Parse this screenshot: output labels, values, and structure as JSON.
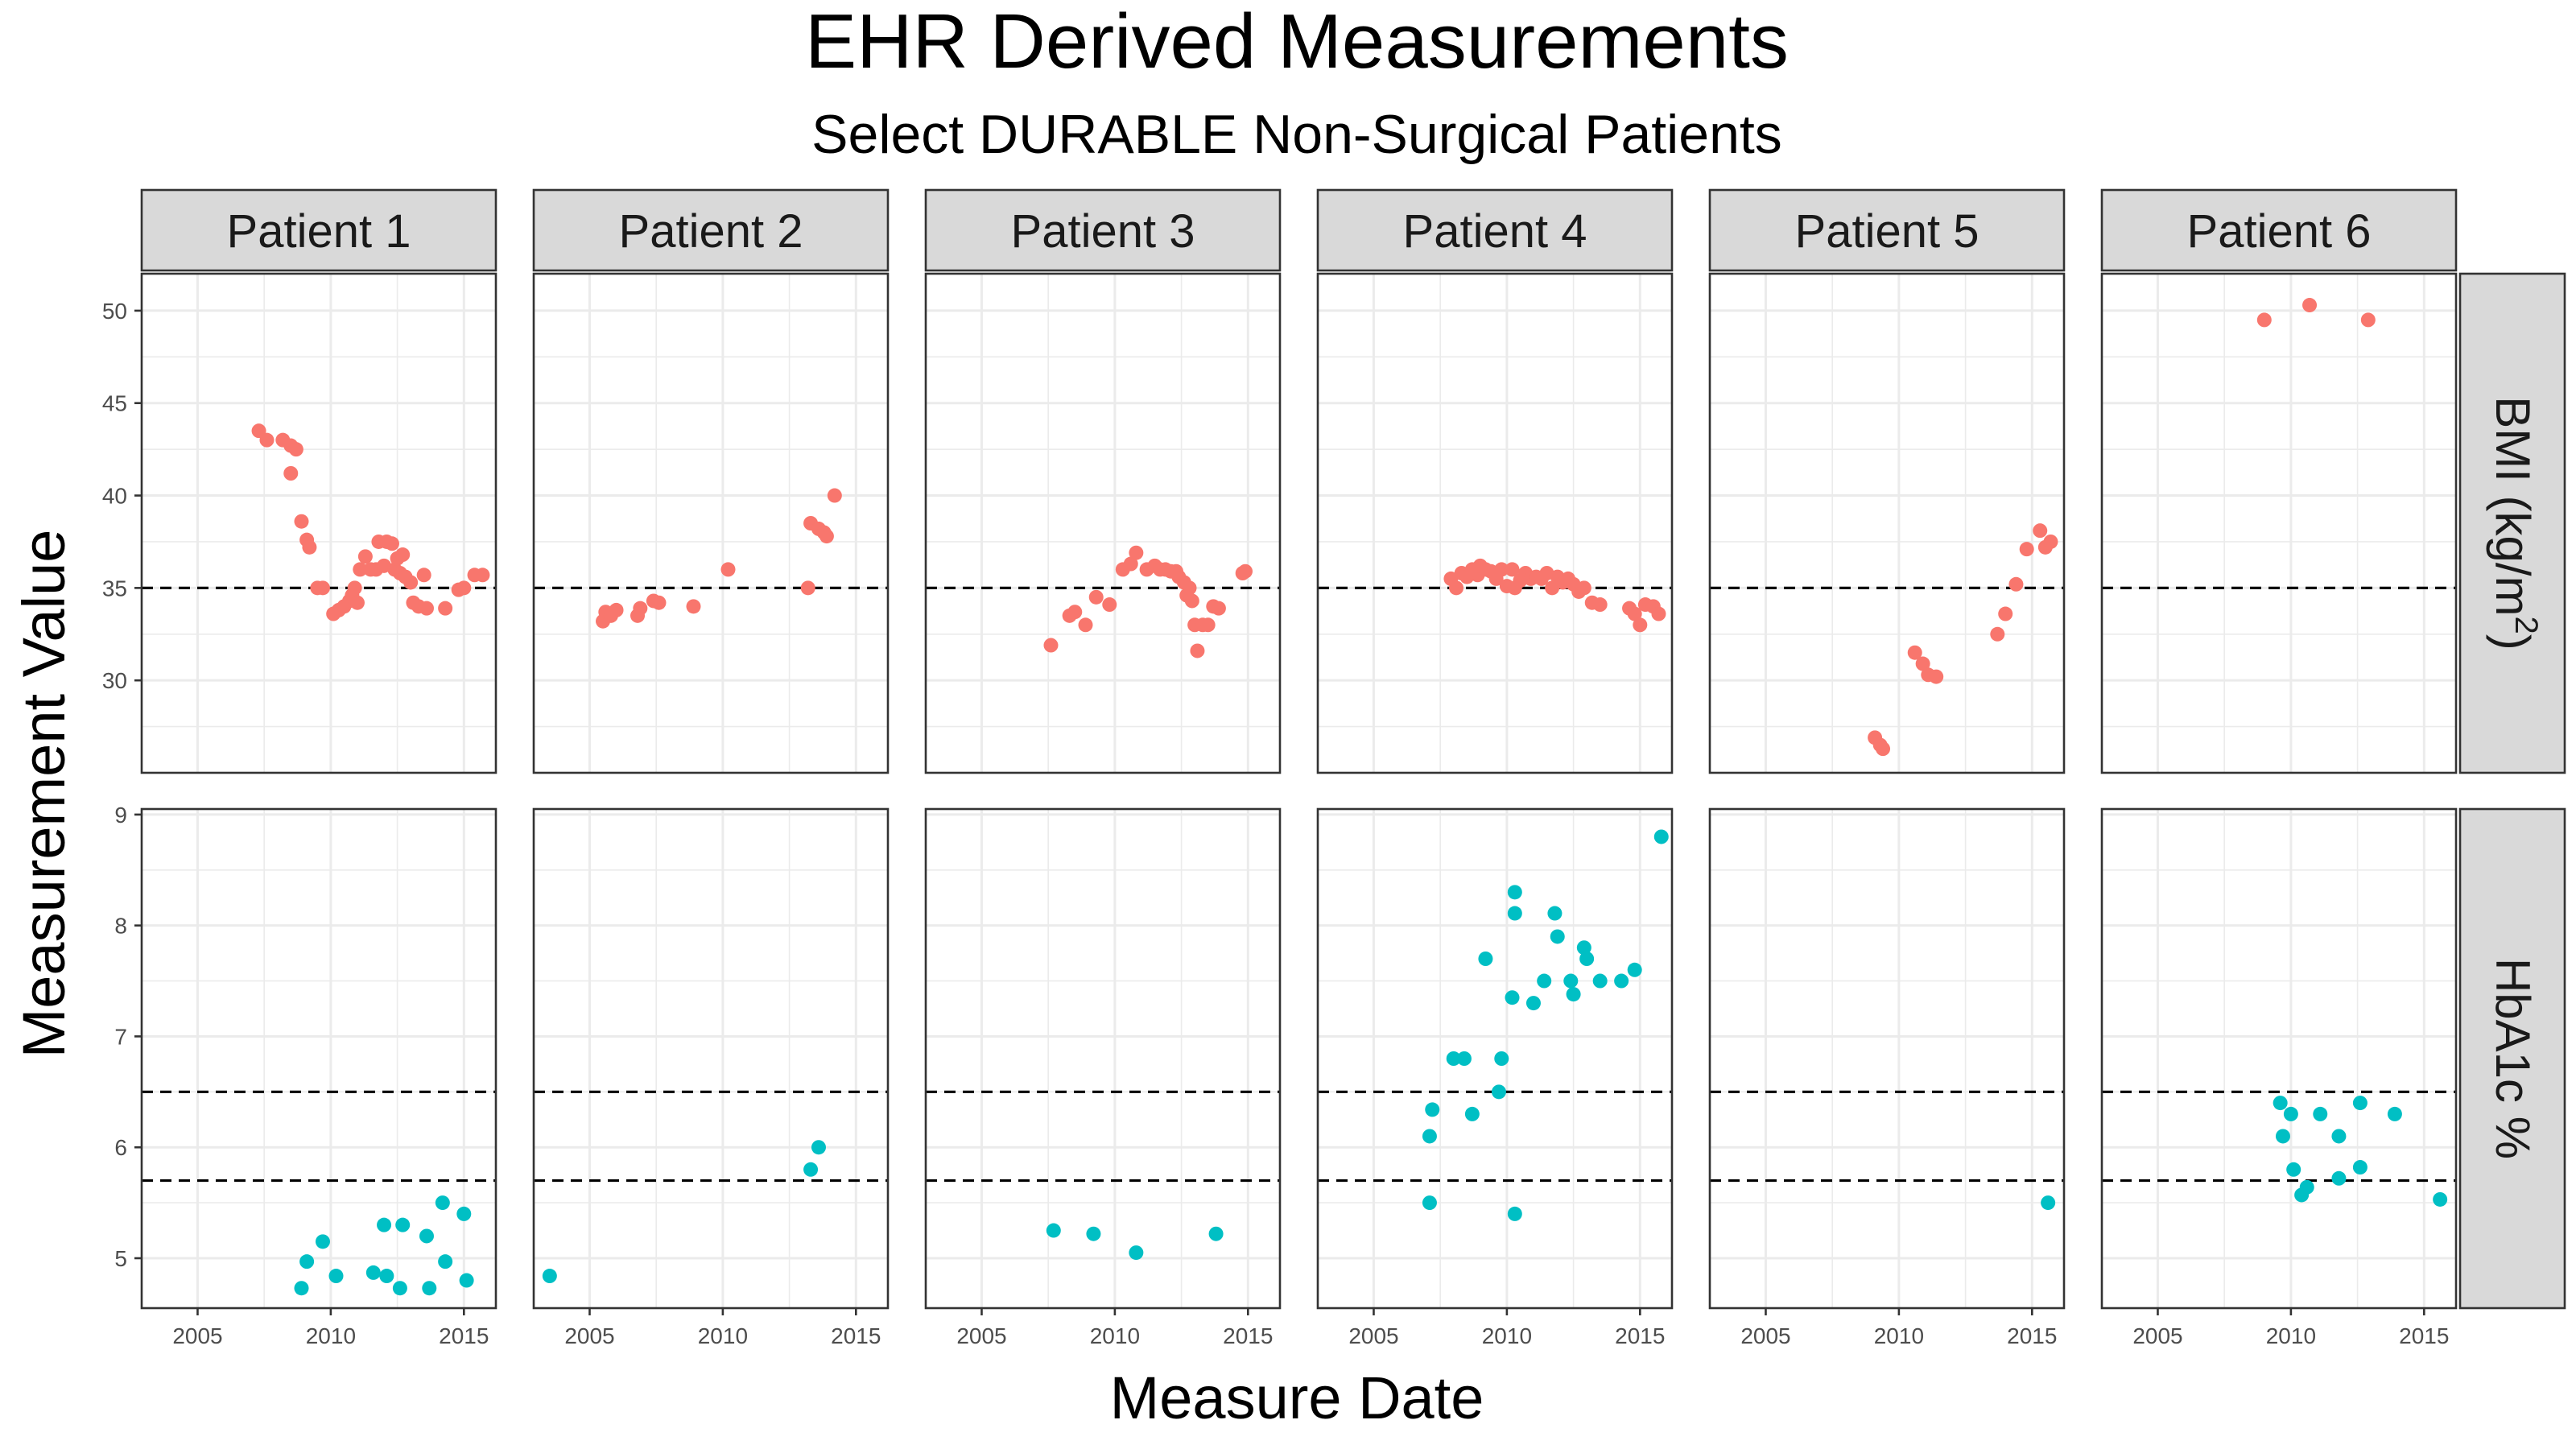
{
  "title": "EHR Derived Measurements",
  "subtitle": "Select DURABLE Non-Surgical Patients",
  "xlabel": "Measure Date",
  "ylabel": "Measurement Value",
  "colors": {
    "BMI": "#F8766D",
    "HbA1c": "#00BFC4",
    "strip_fill": "#D9D9D9",
    "grid": "#EBEBEB"
  },
  "chart_data": {
    "type": "scatter",
    "facet_rows": [
      {
        "key": "BMI",
        "label": "BMI (kg/m²)",
        "label_main": "BMI (kg/m",
        "label_sup": "2",
        "label_tail": ")",
        "ylim": [
          25,
          52
        ],
        "yticks": [
          30,
          35,
          40,
          45,
          50
        ],
        "reference_lines": [
          35
        ]
      },
      {
        "key": "HbA1c",
        "label": "HbA1c %",
        "ylim": [
          4.55,
          9.05
        ],
        "yticks": [
          5,
          6,
          7,
          8,
          9
        ],
        "reference_lines": [
          5.7,
          6.5
        ]
      }
    ],
    "facet_cols": [
      "Patient 1",
      "Patient 2",
      "Patient 3",
      "Patient 4",
      "Patient 5",
      "Patient 6"
    ],
    "xlim": [
      2002.9,
      2016.2
    ],
    "xticks": [
      2005,
      2010,
      2015
    ],
    "grid": true,
    "panels": {
      "BMI": [
        [
          [
            2007.3,
            43.5
          ],
          [
            2007.6,
            43.0
          ],
          [
            2008.2,
            43.0
          ],
          [
            2008.5,
            42.7
          ],
          [
            2008.7,
            42.5
          ],
          [
            2008.5,
            41.2
          ],
          [
            2008.9,
            38.6
          ],
          [
            2009.1,
            37.6
          ],
          [
            2009.2,
            37.2
          ],
          [
            2009.5,
            35.0
          ],
          [
            2009.7,
            35.0
          ],
          [
            2010.1,
            33.6
          ],
          [
            2010.3,
            33.8
          ],
          [
            2010.5,
            34.0
          ],
          [
            2010.7,
            34.3
          ],
          [
            2010.8,
            34.6
          ],
          [
            2010.9,
            35.0
          ],
          [
            2011.0,
            34.2
          ],
          [
            2011.1,
            36.0
          ],
          [
            2011.3,
            36.7
          ],
          [
            2011.5,
            36.0
          ],
          [
            2011.7,
            36.0
          ],
          [
            2011.8,
            37.5
          ],
          [
            2012.0,
            36.2
          ],
          [
            2012.1,
            37.5
          ],
          [
            2012.3,
            37.4
          ],
          [
            2012.4,
            36.0
          ],
          [
            2012.5,
            36.6
          ],
          [
            2012.6,
            35.8
          ],
          [
            2012.7,
            36.8
          ],
          [
            2012.8,
            35.6
          ],
          [
            2013.0,
            35.3
          ],
          [
            2013.1,
            34.2
          ],
          [
            2013.3,
            34.0
          ],
          [
            2013.5,
            35.7
          ],
          [
            2013.6,
            33.9
          ],
          [
            2014.3,
            33.9
          ],
          [
            2014.8,
            34.9
          ],
          [
            2015.0,
            35.0
          ],
          [
            2015.4,
            35.7
          ],
          [
            2015.7,
            35.7
          ]
        ],
        [
          [
            2005.5,
            33.2
          ],
          [
            2005.6,
            33.7
          ],
          [
            2005.8,
            33.5
          ],
          [
            2006.0,
            33.8
          ],
          [
            2006.8,
            33.5
          ],
          [
            2006.9,
            33.9
          ],
          [
            2007.4,
            34.3
          ],
          [
            2007.6,
            34.2
          ],
          [
            2008.9,
            34.0
          ],
          [
            2010.2,
            36.0
          ],
          [
            2013.2,
            35.0
          ],
          [
            2013.3,
            38.5
          ],
          [
            2013.6,
            38.2
          ],
          [
            2013.8,
            38.0
          ],
          [
            2013.9,
            37.8
          ],
          [
            2014.2,
            40.0
          ]
        ],
        [
          [
            2007.6,
            31.9
          ],
          [
            2008.3,
            33.5
          ],
          [
            2008.5,
            33.7
          ],
          [
            2008.9,
            33.0
          ],
          [
            2009.3,
            34.5
          ],
          [
            2009.8,
            34.1
          ],
          [
            2010.3,
            36.0
          ],
          [
            2010.6,
            36.3
          ],
          [
            2010.8,
            36.9
          ],
          [
            2011.2,
            36.0
          ],
          [
            2011.5,
            36.2
          ],
          [
            2011.7,
            36.0
          ],
          [
            2011.9,
            36.0
          ],
          [
            2012.1,
            35.9
          ],
          [
            2012.3,
            35.9
          ],
          [
            2012.4,
            35.6
          ],
          [
            2012.6,
            35.3
          ],
          [
            2012.7,
            34.6
          ],
          [
            2012.8,
            35.0
          ],
          [
            2012.9,
            34.3
          ],
          [
            2013.0,
            33.0
          ],
          [
            2013.1,
            31.6
          ],
          [
            2013.3,
            33.0
          ],
          [
            2013.5,
            33.0
          ],
          [
            2013.7,
            34.0
          ],
          [
            2013.9,
            33.9
          ],
          [
            2014.8,
            35.8
          ],
          [
            2014.9,
            35.9
          ]
        ],
        [
          [
            2007.9,
            35.5
          ],
          [
            2008.1,
            35.0
          ],
          [
            2008.3,
            35.8
          ],
          [
            2008.5,
            35.6
          ],
          [
            2008.7,
            36.0
          ],
          [
            2008.9,
            35.7
          ],
          [
            2009.0,
            36.2
          ],
          [
            2009.2,
            36.0
          ],
          [
            2009.4,
            35.9
          ],
          [
            2009.6,
            35.5
          ],
          [
            2009.8,
            36.0
          ],
          [
            2010.0,
            35.1
          ],
          [
            2010.2,
            36.0
          ],
          [
            2010.3,
            35.0
          ],
          [
            2010.5,
            35.4
          ],
          [
            2010.7,
            35.8
          ],
          [
            2010.9,
            35.5
          ],
          [
            2011.1,
            35.6
          ],
          [
            2011.3,
            35.5
          ],
          [
            2011.5,
            35.8
          ],
          [
            2011.7,
            35.0
          ],
          [
            2011.9,
            35.6
          ],
          [
            2012.1,
            35.3
          ],
          [
            2012.3,
            35.5
          ],
          [
            2012.5,
            35.2
          ],
          [
            2012.7,
            34.8
          ],
          [
            2012.9,
            35.0
          ],
          [
            2013.2,
            34.2
          ],
          [
            2013.5,
            34.1
          ],
          [
            2014.6,
            33.9
          ],
          [
            2014.8,
            33.6
          ],
          [
            2015.0,
            33.0
          ],
          [
            2015.2,
            34.1
          ],
          [
            2015.5,
            34.0
          ],
          [
            2015.7,
            33.6
          ]
        ],
        [
          [
            2009.1,
            26.9
          ],
          [
            2009.3,
            26.5
          ],
          [
            2009.4,
            26.3
          ],
          [
            2010.6,
            31.5
          ],
          [
            2010.9,
            30.9
          ],
          [
            2011.1,
            30.3
          ],
          [
            2011.4,
            30.2
          ],
          [
            2013.7,
            32.5
          ],
          [
            2014.0,
            33.6
          ],
          [
            2014.4,
            35.2
          ],
          [
            2014.8,
            37.1
          ],
          [
            2015.3,
            38.1
          ],
          [
            2015.5,
            37.2
          ],
          [
            2015.7,
            37.5
          ]
        ],
        [
          [
            2009.0,
            49.5
          ],
          [
            2010.7,
            50.3
          ],
          [
            2012.9,
            49.5
          ]
        ]
      ],
      "HbA1c": [
        [
          [
            2008.9,
            4.73
          ],
          [
            2009.1,
            4.97
          ],
          [
            2009.7,
            5.15
          ],
          [
            2010.2,
            4.84
          ],
          [
            2011.6,
            4.87
          ],
          [
            2012.0,
            5.3
          ],
          [
            2012.1,
            4.84
          ],
          [
            2012.6,
            4.73
          ],
          [
            2012.7,
            5.3
          ],
          [
            2013.6,
            5.2
          ],
          [
            2013.7,
            4.73
          ],
          [
            2014.2,
            5.5
          ],
          [
            2014.3,
            4.97
          ],
          [
            2015.0,
            5.4
          ],
          [
            2015.1,
            4.8
          ]
        ],
        [
          [
            2003.5,
            4.84
          ],
          [
            2013.3,
            5.8
          ],
          [
            2013.6,
            6.0
          ]
        ],
        [
          [
            2007.7,
            5.25
          ],
          [
            2009.2,
            5.22
          ],
          [
            2010.8,
            5.05
          ],
          [
            2013.8,
            5.22
          ]
        ],
        [
          [
            2007.1,
            5.5
          ],
          [
            2007.1,
            6.1
          ],
          [
            2007.2,
            6.34
          ],
          [
            2008.0,
            6.8
          ],
          [
            2008.4,
            6.8
          ],
          [
            2008.7,
            6.3
          ],
          [
            2009.2,
            7.7
          ],
          [
            2009.7,
            6.5
          ],
          [
            2009.8,
            6.8
          ],
          [
            2010.2,
            7.35
          ],
          [
            2010.3,
            8.11
          ],
          [
            2010.3,
            8.3
          ],
          [
            2010.3,
            5.4
          ],
          [
            2011.0,
            7.3
          ],
          [
            2011.4,
            7.5
          ],
          [
            2011.8,
            8.11
          ],
          [
            2011.9,
            7.9
          ],
          [
            2012.4,
            7.5
          ],
          [
            2012.5,
            7.38
          ],
          [
            2012.9,
            7.8
          ],
          [
            2013.0,
            7.7
          ],
          [
            2013.5,
            7.5
          ],
          [
            2014.3,
            7.5
          ],
          [
            2014.8,
            7.6
          ],
          [
            2015.8,
            8.8
          ]
        ],
        [
          [
            2015.6,
            5.5
          ]
        ],
        [
          [
            2009.6,
            6.4
          ],
          [
            2009.7,
            6.1
          ],
          [
            2010.0,
            6.3
          ],
          [
            2010.1,
            5.8
          ],
          [
            2010.4,
            5.57
          ],
          [
            2010.6,
            5.64
          ],
          [
            2011.1,
            6.3
          ],
          [
            2011.8,
            6.1
          ],
          [
            2011.8,
            5.72
          ],
          [
            2012.6,
            6.4
          ],
          [
            2012.6,
            5.82
          ],
          [
            2013.9,
            6.3
          ],
          [
            2015.6,
            5.53
          ]
        ]
      ]
    }
  }
}
